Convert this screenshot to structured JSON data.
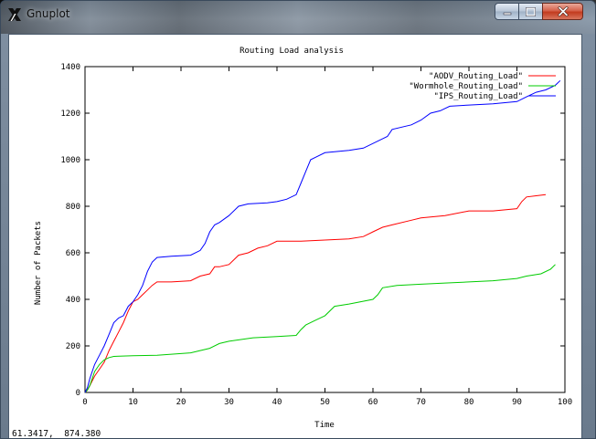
{
  "window": {
    "title": "Gnuplot",
    "buttons": {
      "minimize": "minimize",
      "maximize": "maximize",
      "close": "close"
    }
  },
  "status": {
    "coordinates": "61.3417,  874.380"
  },
  "chart_data": {
    "type": "line",
    "title": "Routing Load analysis",
    "xlabel": "Time",
    "ylabel": "Number of Packets",
    "xlim": [
      0,
      100
    ],
    "ylim": [
      0,
      1400
    ],
    "xticks": [
      0,
      10,
      20,
      30,
      40,
      50,
      60,
      70,
      80,
      90,
      100
    ],
    "yticks": [
      0,
      200,
      400,
      600,
      800,
      1000,
      1200,
      1400
    ],
    "grid": false,
    "legend": "top-right",
    "series": [
      {
        "name": "\"AODV_Routing_Load\"",
        "color": "#ff0000",
        "x": [
          0,
          0.5,
          1,
          2,
          3,
          4,
          5,
          6,
          7,
          8,
          9,
          10,
          11,
          12,
          13,
          14,
          15,
          18,
          22,
          24,
          26,
          27,
          28,
          30,
          32,
          34,
          36,
          38,
          40,
          45,
          50,
          55,
          58,
          60,
          62,
          64,
          68,
          70,
          75,
          80,
          85,
          90,
          91,
          92,
          94,
          96
        ],
        "y": [
          0,
          10,
          30,
          70,
          100,
          130,
          180,
          220,
          260,
          300,
          350,
          390,
          400,
          420,
          440,
          460,
          475,
          475,
          480,
          500,
          510,
          540,
          540,
          550,
          590,
          600,
          620,
          630,
          650,
          650,
          655,
          660,
          670,
          690,
          710,
          720,
          740,
          750,
          760,
          780,
          780,
          790,
          820,
          840,
          845,
          850
        ]
      },
      {
        "name": "\"Wormhole_Routing_Load\"",
        "color": "#00cc00",
        "x": [
          0,
          0.5,
          1,
          2,
          3,
          4,
          5,
          6,
          10,
          15,
          22,
          24,
          26,
          28,
          30,
          35,
          40,
          44,
          45,
          46,
          48,
          50,
          52,
          55,
          60,
          61,
          62,
          65,
          70,
          75,
          80,
          85,
          90,
          92,
          95,
          97,
          98
        ],
        "y": [
          0,
          10,
          30,
          90,
          120,
          140,
          150,
          155,
          158,
          160,
          170,
          180,
          190,
          210,
          220,
          235,
          240,
          245,
          270,
          290,
          310,
          330,
          370,
          380,
          400,
          420,
          450,
          460,
          465,
          470,
          475,
          480,
          490,
          500,
          510,
          530,
          550
        ]
      },
      {
        "name": "\"IPS_Routing_Load\"",
        "color": "#0000ff",
        "x": [
          0,
          0.5,
          1,
          2,
          3,
          4,
          5,
          6,
          7,
          8,
          9,
          10,
          11,
          12,
          13,
          14,
          15,
          18,
          22,
          24,
          25,
          26,
          27,
          28,
          30,
          32,
          34,
          38,
          40,
          42,
          44,
          45,
          46,
          47,
          48,
          50,
          55,
          58,
          62,
          63,
          64,
          68,
          70,
          72,
          74,
          76,
          80,
          85,
          90,
          92,
          94,
          96,
          98,
          99
        ],
        "y": [
          0,
          20,
          60,
          120,
          160,
          200,
          250,
          300,
          320,
          330,
          370,
          390,
          420,
          460,
          520,
          560,
          580,
          585,
          590,
          610,
          640,
          690,
          720,
          730,
          760,
          800,
          810,
          815,
          820,
          830,
          850,
          900,
          950,
          1000,
          1010,
          1030,
          1040,
          1050,
          1090,
          1100,
          1130,
          1150,
          1170,
          1200,
          1210,
          1230,
          1235,
          1240,
          1250,
          1270,
          1290,
          1300,
          1320,
          1340
        ]
      }
    ]
  }
}
